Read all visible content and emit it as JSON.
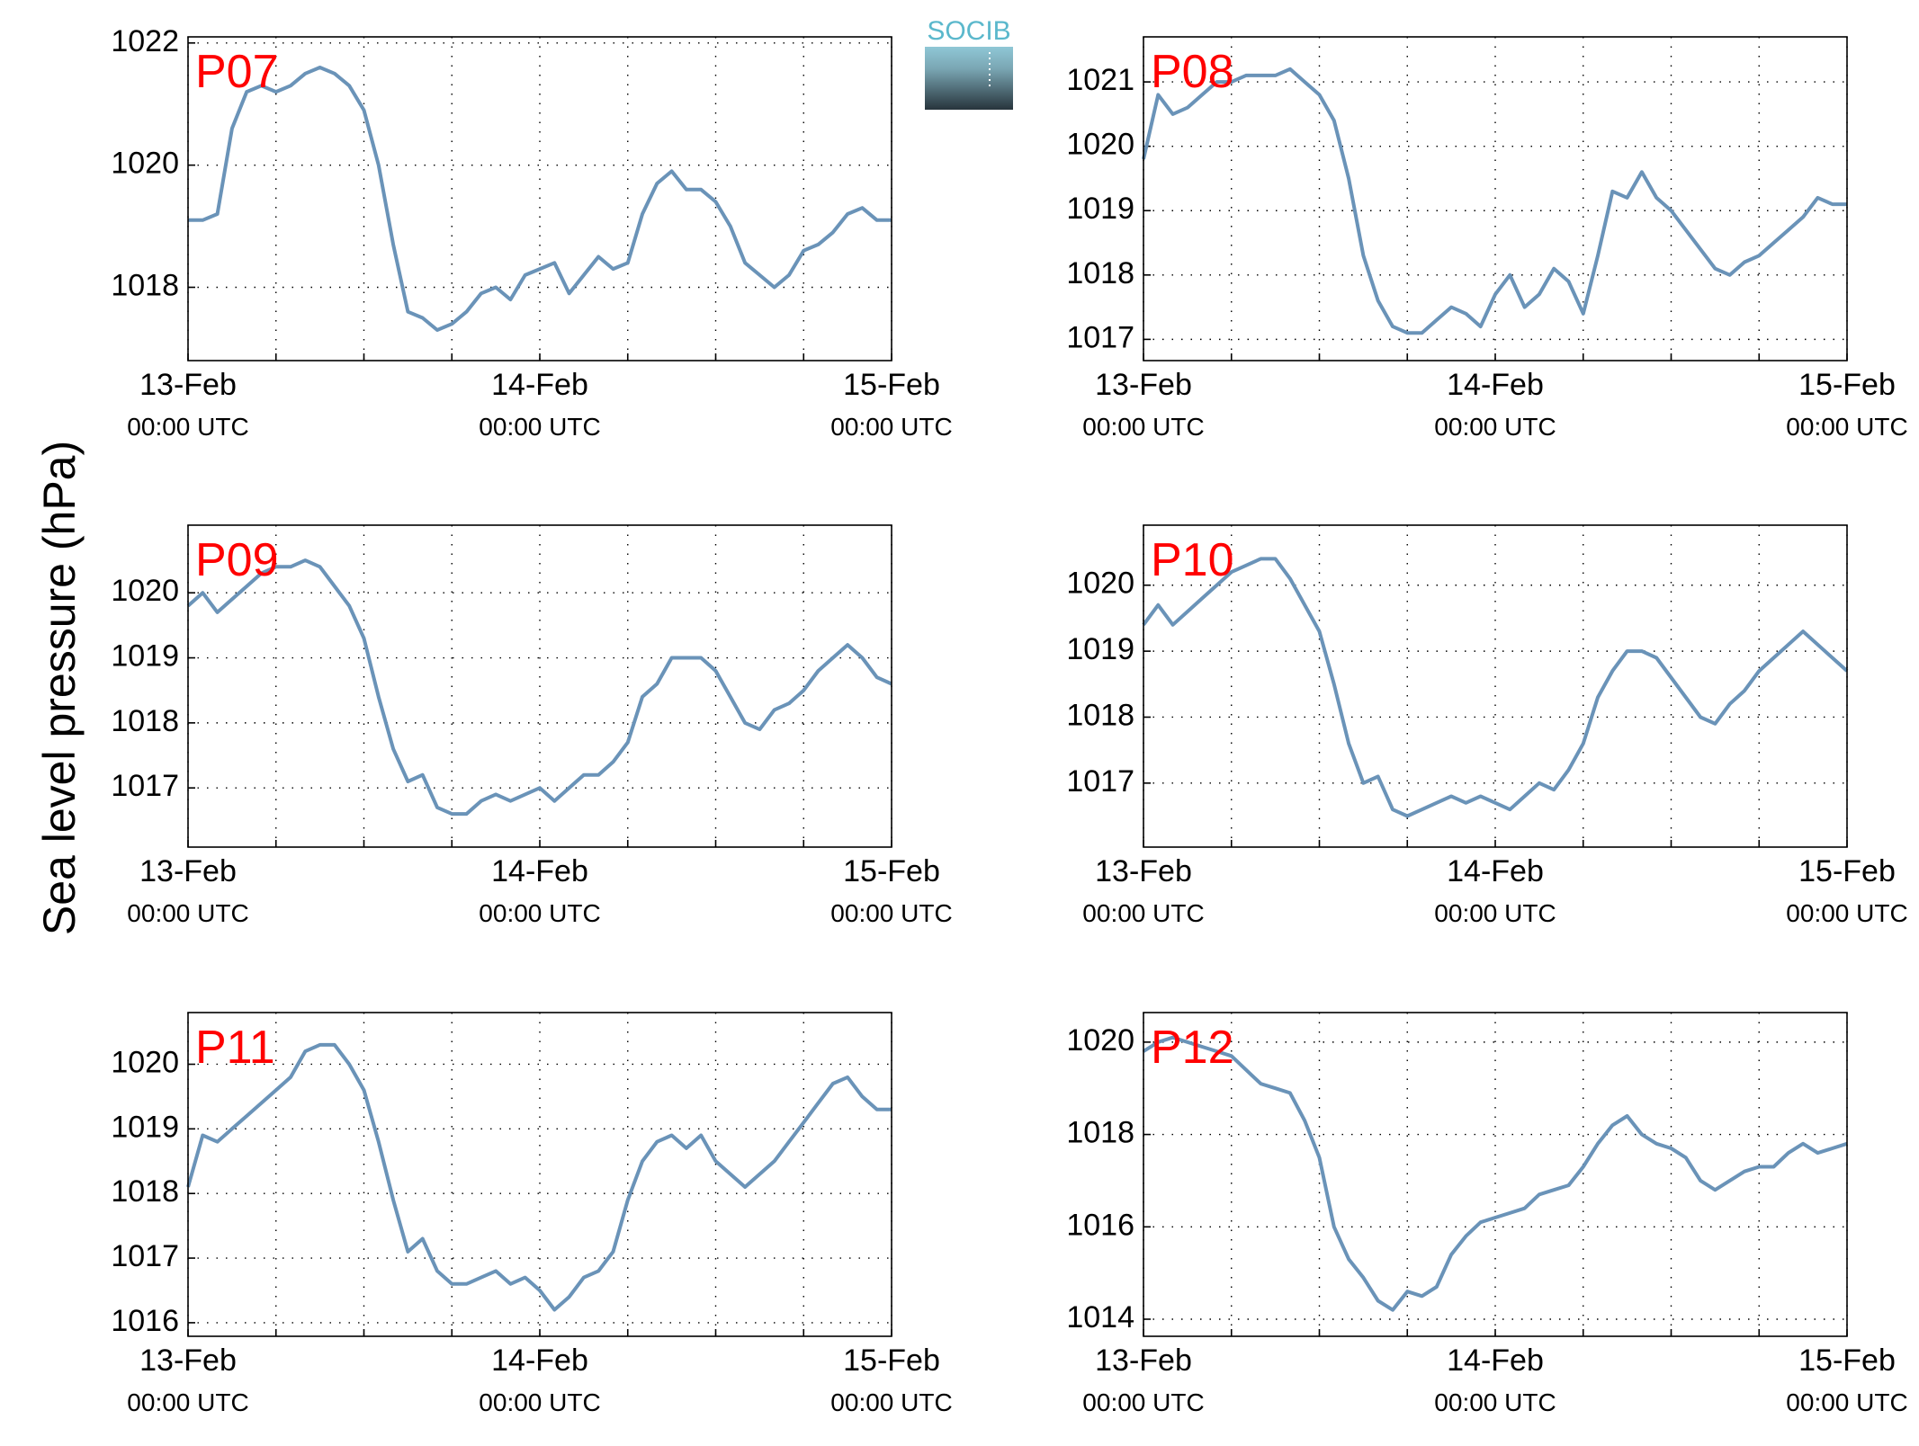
{
  "ylabel": "Sea level pressure (hPa)",
  "logo": "SOCIB",
  "chart_data": [
    {
      "type": "line",
      "label": "P07",
      "color": "#6a93b8",
      "grid": true,
      "xlim": [
        0,
        48
      ],
      "ylim": [
        1016.8,
        1022.1
      ],
      "yticks": [
        1018,
        1020,
        1022
      ],
      "xticks": [
        {
          "value": 0,
          "label": "13-Feb"
        },
        {
          "value": 6,
          "label": null
        },
        {
          "value": 12,
          "label": null
        },
        {
          "value": 18,
          "label": null
        },
        {
          "value": 24,
          "label": "14-Feb"
        },
        {
          "value": 30,
          "label": null
        },
        {
          "value": 36,
          "label": null
        },
        {
          "value": 42,
          "label": null
        },
        {
          "value": 48,
          "label": "15-Feb"
        }
      ],
      "xtick_sublabels": [
        "00:00 UTC",
        null,
        null,
        null,
        "00:00 UTC",
        null,
        null,
        null,
        "00:00 UTC"
      ],
      "x": [
        0,
        1,
        2,
        3,
        4,
        5,
        6,
        7,
        8,
        9,
        10,
        11,
        12,
        13,
        14,
        15,
        16,
        17,
        18,
        19,
        20,
        21,
        22,
        23,
        24,
        25,
        26,
        27,
        28,
        29,
        30,
        31,
        32,
        33,
        34,
        35,
        36,
        37,
        38,
        39,
        40,
        41,
        42,
        43,
        44,
        45,
        46,
        47,
        48
      ],
      "values": [
        1019.1,
        1019.1,
        1019.2,
        1020.6,
        1021.2,
        1021.3,
        1021.2,
        1021.3,
        1021.5,
        1021.6,
        1021.5,
        1021.3,
        1020.9,
        1020.0,
        1018.7,
        1017.6,
        1017.5,
        1017.3,
        1017.4,
        1017.6,
        1017.9,
        1018.0,
        1017.8,
        1018.2,
        1018.3,
        1018.4,
        1017.9,
        1018.2,
        1018.5,
        1018.3,
        1018.4,
        1019.2,
        1019.7,
        1019.9,
        1019.6,
        1019.6,
        1019.4,
        1019.0,
        1018.4,
        1018.2,
        1018.0,
        1018.2,
        1018.6,
        1018.7,
        1018.9,
        1019.2,
        1019.3,
        1019.1,
        1019.1
      ]
    },
    {
      "type": "line",
      "label": "P08",
      "color": "#6a93b8",
      "grid": true,
      "xlim": [
        0,
        48
      ],
      "ylim": [
        1016.67,
        1021.7
      ],
      "yticks": [
        1017,
        1018,
        1019,
        1020,
        1021
      ],
      "xticks": [
        {
          "value": 0,
          "label": "13-Feb"
        },
        {
          "value": 6,
          "label": null
        },
        {
          "value": 12,
          "label": null
        },
        {
          "value": 18,
          "label": null
        },
        {
          "value": 24,
          "label": "14-Feb"
        },
        {
          "value": 30,
          "label": null
        },
        {
          "value": 36,
          "label": null
        },
        {
          "value": 42,
          "label": null
        },
        {
          "value": 48,
          "label": "15-Feb"
        }
      ],
      "xtick_sublabels": [
        "00:00 UTC",
        null,
        null,
        null,
        "00:00 UTC",
        null,
        null,
        null,
        "00:00 UTC"
      ],
      "x": [
        0,
        1,
        2,
        3,
        4,
        5,
        6,
        7,
        8,
        9,
        10,
        11,
        12,
        13,
        14,
        15,
        16,
        17,
        18,
        19,
        20,
        21,
        22,
        23,
        24,
        25,
        26,
        27,
        28,
        29,
        30,
        31,
        32,
        33,
        34,
        35,
        36,
        37,
        38,
        39,
        40,
        41,
        42,
        43,
        44,
        45,
        46,
        47,
        48
      ],
      "values": [
        1019.8,
        1020.8,
        1020.5,
        1020.6,
        1020.8,
        1021.0,
        1021.0,
        1021.1,
        1021.1,
        1021.1,
        1021.2,
        1021.0,
        1020.8,
        1020.4,
        1019.5,
        1018.3,
        1017.6,
        1017.2,
        1017.1,
        1017.1,
        1017.3,
        1017.5,
        1017.4,
        1017.2,
        1017.7,
        1018.0,
        1017.5,
        1017.7,
        1018.1,
        1017.9,
        1017.4,
        1018.3,
        1019.3,
        1019.2,
        1019.6,
        1019.2,
        1019.0,
        1018.7,
        1018.4,
        1018.1,
        1018.0,
        1018.2,
        1018.3,
        1018.5,
        1018.7,
        1018.9,
        1019.2,
        1019.1,
        1019.1
      ]
    },
    {
      "type": "line",
      "label": "P09",
      "color": "#6a93b8",
      "grid": true,
      "xlim": [
        0,
        48
      ],
      "ylim": [
        1016.09,
        1021.04
      ],
      "yticks": [
        1017,
        1018,
        1019,
        1020
      ],
      "xticks": [
        {
          "value": 0,
          "label": "13-Feb"
        },
        {
          "value": 6,
          "label": null
        },
        {
          "value": 12,
          "label": null
        },
        {
          "value": 18,
          "label": null
        },
        {
          "value": 24,
          "label": "14-Feb"
        },
        {
          "value": 30,
          "label": null
        },
        {
          "value": 36,
          "label": null
        },
        {
          "value": 42,
          "label": null
        },
        {
          "value": 48,
          "label": "15-Feb"
        }
      ],
      "xtick_sublabels": [
        "00:00 UTC",
        null,
        null,
        null,
        "00:00 UTC",
        null,
        null,
        null,
        "00:00 UTC"
      ],
      "x": [
        0,
        1,
        2,
        3,
        4,
        5,
        6,
        7,
        8,
        9,
        10,
        11,
        12,
        13,
        14,
        15,
        16,
        17,
        18,
        19,
        20,
        21,
        22,
        23,
        24,
        25,
        26,
        27,
        28,
        29,
        30,
        31,
        32,
        33,
        34,
        35,
        36,
        37,
        38,
        39,
        40,
        41,
        42,
        43,
        44,
        45,
        46,
        47,
        48
      ],
      "values": [
        1019.8,
        1020.0,
        1019.7,
        1019.9,
        1020.1,
        1020.3,
        1020.4,
        1020.4,
        1020.5,
        1020.4,
        1020.1,
        1019.8,
        1019.3,
        1018.4,
        1017.6,
        1017.1,
        1017.2,
        1016.7,
        1016.6,
        1016.6,
        1016.8,
        1016.9,
        1016.8,
        1016.9,
        1017.0,
        1016.8,
        1017.0,
        1017.2,
        1017.2,
        1017.4,
        1017.7,
        1018.4,
        1018.6,
        1019.0,
        1019.0,
        1019.0,
        1018.8,
        1018.4,
        1018.0,
        1017.9,
        1018.2,
        1018.3,
        1018.5,
        1018.8,
        1019.0,
        1019.2,
        1019.0,
        1018.7,
        1018.6
      ]
    },
    {
      "type": "line",
      "label": "P10",
      "color": "#6a93b8",
      "grid": true,
      "xlim": [
        0,
        48
      ],
      "ylim": [
        1016.03,
        1020.91
      ],
      "yticks": [
        1017,
        1018,
        1019,
        1020
      ],
      "xticks": [
        {
          "value": 0,
          "label": "13-Feb"
        },
        {
          "value": 6,
          "label": null
        },
        {
          "value": 12,
          "label": null
        },
        {
          "value": 18,
          "label": null
        },
        {
          "value": 24,
          "label": "14-Feb"
        },
        {
          "value": 30,
          "label": null
        },
        {
          "value": 36,
          "label": null
        },
        {
          "value": 42,
          "label": null
        },
        {
          "value": 48,
          "label": "15-Feb"
        }
      ],
      "xtick_sublabels": [
        "00:00 UTC",
        null,
        null,
        null,
        "00:00 UTC",
        null,
        null,
        null,
        "00:00 UTC"
      ],
      "x": [
        0,
        1,
        2,
        3,
        4,
        5,
        6,
        7,
        8,
        9,
        10,
        11,
        12,
        13,
        14,
        15,
        16,
        17,
        18,
        19,
        20,
        21,
        22,
        23,
        24,
        25,
        26,
        27,
        28,
        29,
        30,
        31,
        32,
        33,
        34,
        35,
        36,
        37,
        38,
        39,
        40,
        41,
        42,
        43,
        44,
        45,
        46,
        47,
        48
      ],
      "values": [
        1019.4,
        1019.7,
        1019.4,
        1019.6,
        1019.8,
        1020.0,
        1020.2,
        1020.3,
        1020.4,
        1020.4,
        1020.1,
        1019.7,
        1019.3,
        1018.5,
        1017.6,
        1017.0,
        1017.1,
        1016.6,
        1016.5,
        1016.6,
        1016.7,
        1016.8,
        1016.7,
        1016.8,
        1016.7,
        1016.6,
        1016.8,
        1017.0,
        1016.9,
        1017.2,
        1017.6,
        1018.3,
        1018.7,
        1019.0,
        1019.0,
        1018.9,
        1018.6,
        1018.3,
        1018.0,
        1017.9,
        1018.2,
        1018.4,
        1018.7,
        1018.9,
        1019.1,
        1019.3,
        1019.1,
        1018.9,
        1018.7
      ]
    },
    {
      "type": "line",
      "label": "P11",
      "color": "#6a93b8",
      "grid": true,
      "xlim": [
        0,
        48
      ],
      "ylim": [
        1015.79,
        1020.8
      ],
      "yticks": [
        1016,
        1017,
        1018,
        1019,
        1020
      ],
      "xticks": [
        {
          "value": 0,
          "label": "13-Feb"
        },
        {
          "value": 6,
          "label": null
        },
        {
          "value": 12,
          "label": null
        },
        {
          "value": 18,
          "label": null
        },
        {
          "value": 24,
          "label": "14-Feb"
        },
        {
          "value": 30,
          "label": null
        },
        {
          "value": 36,
          "label": null
        },
        {
          "value": 42,
          "label": null
        },
        {
          "value": 48,
          "label": "15-Feb"
        }
      ],
      "xtick_sublabels": [
        "00:00 UTC",
        null,
        null,
        null,
        "00:00 UTC",
        null,
        null,
        null,
        "00:00 UTC"
      ],
      "x": [
        0,
        1,
        2,
        3,
        4,
        5,
        6,
        7,
        8,
        9,
        10,
        11,
        12,
        13,
        14,
        15,
        16,
        17,
        18,
        19,
        20,
        21,
        22,
        23,
        24,
        25,
        26,
        27,
        28,
        29,
        30,
        31,
        32,
        33,
        34,
        35,
        36,
        37,
        38,
        39,
        40,
        41,
        42,
        43,
        44,
        45,
        46,
        47,
        48
      ],
      "values": [
        1018.1,
        1018.9,
        1018.8,
        1019.0,
        1019.2,
        1019.4,
        1019.6,
        1019.8,
        1020.2,
        1020.3,
        1020.3,
        1020.0,
        1019.6,
        1018.8,
        1017.9,
        1017.1,
        1017.3,
        1016.8,
        1016.6,
        1016.6,
        1016.7,
        1016.8,
        1016.6,
        1016.7,
        1016.5,
        1016.2,
        1016.4,
        1016.7,
        1016.8,
        1017.1,
        1017.9,
        1018.5,
        1018.8,
        1018.9,
        1018.7,
        1018.9,
        1018.5,
        1018.3,
        1018.1,
        1018.3,
        1018.5,
        1018.8,
        1019.1,
        1019.4,
        1019.7,
        1019.8,
        1019.5,
        1019.3,
        1019.3
      ]
    },
    {
      "type": "line",
      "label": "P12",
      "color": "#6a93b8",
      "grid": true,
      "xlim": [
        0,
        48
      ],
      "ylim": [
        1013.63,
        1020.64
      ],
      "yticks": [
        1014,
        1016,
        1018,
        1020
      ],
      "xticks": [
        {
          "value": 0,
          "label": "13-Feb"
        },
        {
          "value": 6,
          "label": null
        },
        {
          "value": 12,
          "label": null
        },
        {
          "value": 18,
          "label": null
        },
        {
          "value": 24,
          "label": "14-Feb"
        },
        {
          "value": 30,
          "label": null
        },
        {
          "value": 36,
          "label": null
        },
        {
          "value": 42,
          "label": null
        },
        {
          "value": 48,
          "label": "15-Feb"
        }
      ],
      "xtick_sublabels": [
        "00:00 UTC",
        null,
        null,
        null,
        "00:00 UTC",
        null,
        null,
        null,
        "00:00 UTC"
      ],
      "x": [
        0,
        1,
        2,
        3,
        4,
        5,
        6,
        7,
        8,
        9,
        10,
        11,
        12,
        13,
        14,
        15,
        16,
        17,
        18,
        19,
        20,
        21,
        22,
        23,
        24,
        25,
        26,
        27,
        28,
        29,
        30,
        31,
        32,
        33,
        34,
        35,
        36,
        37,
        38,
        39,
        40,
        41,
        42,
        43,
        44,
        45,
        46,
        47,
        48
      ],
      "values": [
        1019.8,
        1020.0,
        1020.1,
        1020.0,
        1019.9,
        1019.8,
        1019.7,
        1019.4,
        1019.1,
        1019.0,
        1018.9,
        1018.3,
        1017.5,
        1016.0,
        1015.3,
        1014.9,
        1014.4,
        1014.2,
        1014.6,
        1014.5,
        1014.7,
        1015.4,
        1015.8,
        1016.1,
        1016.2,
        1016.3,
        1016.4,
        1016.7,
        1016.8,
        1016.9,
        1017.3,
        1017.8,
        1018.2,
        1018.4,
        1018.0,
        1017.8,
        1017.7,
        1017.5,
        1017.0,
        1016.8,
        1017.0,
        1017.2,
        1017.3,
        1017.3,
        1017.6,
        1017.8,
        1017.6,
        1017.7,
        1017.8
      ]
    }
  ]
}
